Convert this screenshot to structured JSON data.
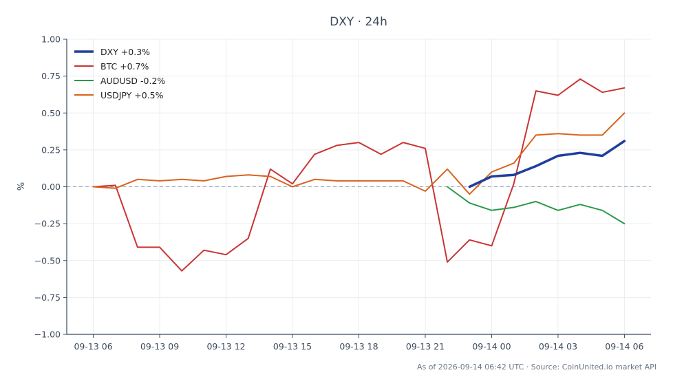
{
  "chart_data": {
    "type": "line",
    "title": "DXY · 24h",
    "xlabel": "",
    "ylabel": "%",
    "ylim": [
      -1.0,
      1.0
    ],
    "yticks": [
      "1.00",
      "0.75",
      "0.50",
      "0.25",
      "0.00",
      "−0.25",
      "−0.50",
      "−0.75",
      "−1.00"
    ],
    "ytick_values": [
      1.0,
      0.75,
      0.5,
      0.25,
      0.0,
      -0.25,
      -0.5,
      -0.75,
      -1.0
    ],
    "x_range_hours": [
      -1.2,
      25.2
    ],
    "xticks": [
      {
        "label": "09-13 06",
        "h": 0
      },
      {
        "label": "09-13 09",
        "h": 3
      },
      {
        "label": "09-13 12",
        "h": 6
      },
      {
        "label": "09-13 15",
        "h": 9
      },
      {
        "label": "09-13 18",
        "h": 12
      },
      {
        "label": "09-13 21",
        "h": 15
      },
      {
        "label": "09-14 00",
        "h": 18
      },
      {
        "label": "09-14 03",
        "h": 21
      },
      {
        "label": "09-14 06",
        "h": 24
      }
    ],
    "grid": true,
    "zero_line": true,
    "legend_position": "top-left",
    "series": [
      {
        "name": "DXY +0.3%",
        "color": "#1f3f9c",
        "width": 3.5,
        "x": [
          17,
          18,
          19,
          20,
          21,
          22,
          23,
          24
        ],
        "values": [
          0.0,
          0.07,
          0.08,
          0.14,
          0.21,
          0.23,
          0.21,
          0.31
        ]
      },
      {
        "name": "BTC +0.7%",
        "color": "#c93434",
        "width": 2,
        "x": [
          0,
          1,
          2,
          3,
          4,
          5,
          6,
          7,
          8,
          9,
          10,
          11,
          12,
          13,
          14,
          15,
          16,
          17,
          18,
          19,
          20,
          21,
          22,
          23,
          24
        ],
        "values": [
          0.0,
          0.01,
          -0.41,
          -0.41,
          -0.57,
          -0.43,
          -0.46,
          -0.35,
          0.12,
          0.02,
          0.22,
          0.28,
          0.3,
          0.22,
          0.3,
          0.26,
          -0.51,
          -0.36,
          -0.4,
          0.02,
          0.65,
          0.62,
          0.73,
          0.64,
          0.67
        ]
      },
      {
        "name": "AUDUSD -0.2%",
        "color": "#2a9a48",
        "width": 2,
        "x": [
          16,
          17,
          18,
          19,
          20,
          21,
          22,
          23,
          24
        ],
        "values": [
          0.0,
          -0.11,
          -0.16,
          -0.14,
          -0.1,
          -0.16,
          -0.12,
          -0.16,
          -0.25
        ]
      },
      {
        "name": "USDJPY +0.5%",
        "color": "#d9631e",
        "width": 2,
        "x": [
          0,
          1,
          2,
          3,
          4,
          5,
          6,
          7,
          8,
          9,
          10,
          11,
          12,
          13,
          14,
          15,
          16,
          17,
          18,
          19,
          20,
          21,
          22,
          23,
          24
        ],
        "values": [
          0.0,
          -0.01,
          0.05,
          0.04,
          0.05,
          0.04,
          0.07,
          0.08,
          0.07,
          0.0,
          0.05,
          0.04,
          0.04,
          0.04,
          0.04,
          -0.03,
          0.12,
          -0.05,
          0.1,
          0.16,
          0.35,
          0.36,
          0.35,
          0.35,
          0.5
        ]
      }
    ]
  },
  "footer": {
    "note": "As of 2026-09-14 06:42 UTC · Source: CoinUnited.io market API"
  },
  "colors": {
    "axis": "#3b4a5c",
    "grid": "#e9edf1",
    "zero_line": "#8a9aaa"
  }
}
